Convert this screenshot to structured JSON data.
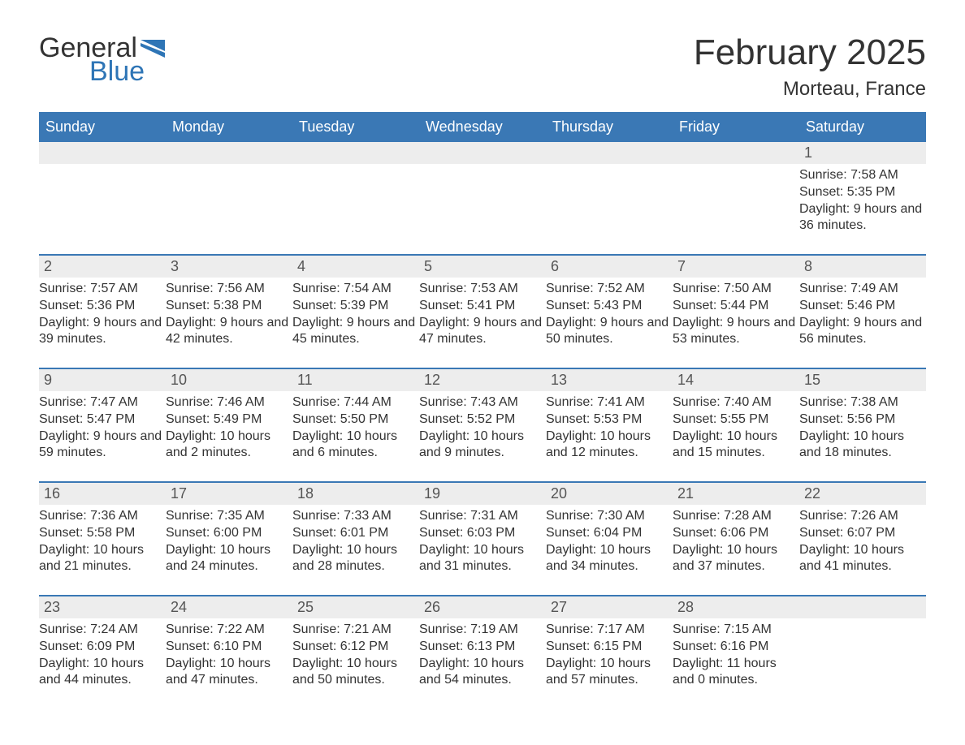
{
  "brand": {
    "text_general": "General",
    "text_blue": "Blue",
    "flag_color": "#2e75b6"
  },
  "title": "February 2025",
  "location": "Morteau, France",
  "colors": {
    "header_bg": "#3a78b5",
    "header_text": "#ffffff",
    "daynum_bg": "#ededed",
    "border": "#3a78b5",
    "body_text": "#333333"
  },
  "weekdays": [
    "Sunday",
    "Monday",
    "Tuesday",
    "Wednesday",
    "Thursday",
    "Friday",
    "Saturday"
  ],
  "weeks": [
    [
      {
        "day": "",
        "sunrise": "",
        "sunset": "",
        "daylight": ""
      },
      {
        "day": "",
        "sunrise": "",
        "sunset": "",
        "daylight": ""
      },
      {
        "day": "",
        "sunrise": "",
        "sunset": "",
        "daylight": ""
      },
      {
        "day": "",
        "sunrise": "",
        "sunset": "",
        "daylight": ""
      },
      {
        "day": "",
        "sunrise": "",
        "sunset": "",
        "daylight": ""
      },
      {
        "day": "",
        "sunrise": "",
        "sunset": "",
        "daylight": ""
      },
      {
        "day": "1",
        "sunrise": "Sunrise: 7:58 AM",
        "sunset": "Sunset: 5:35 PM",
        "daylight": "Daylight: 9 hours and 36 minutes."
      }
    ],
    [
      {
        "day": "2",
        "sunrise": "Sunrise: 7:57 AM",
        "sunset": "Sunset: 5:36 PM",
        "daylight": "Daylight: 9 hours and 39 minutes."
      },
      {
        "day": "3",
        "sunrise": "Sunrise: 7:56 AM",
        "sunset": "Sunset: 5:38 PM",
        "daylight": "Daylight: 9 hours and 42 minutes."
      },
      {
        "day": "4",
        "sunrise": "Sunrise: 7:54 AM",
        "sunset": "Sunset: 5:39 PM",
        "daylight": "Daylight: 9 hours and 45 minutes."
      },
      {
        "day": "5",
        "sunrise": "Sunrise: 7:53 AM",
        "sunset": "Sunset: 5:41 PM",
        "daylight": "Daylight: 9 hours and 47 minutes."
      },
      {
        "day": "6",
        "sunrise": "Sunrise: 7:52 AM",
        "sunset": "Sunset: 5:43 PM",
        "daylight": "Daylight: 9 hours and 50 minutes."
      },
      {
        "day": "7",
        "sunrise": "Sunrise: 7:50 AM",
        "sunset": "Sunset: 5:44 PM",
        "daylight": "Daylight: 9 hours and 53 minutes."
      },
      {
        "day": "8",
        "sunrise": "Sunrise: 7:49 AM",
        "sunset": "Sunset: 5:46 PM",
        "daylight": "Daylight: 9 hours and 56 minutes."
      }
    ],
    [
      {
        "day": "9",
        "sunrise": "Sunrise: 7:47 AM",
        "sunset": "Sunset: 5:47 PM",
        "daylight": "Daylight: 9 hours and 59 minutes."
      },
      {
        "day": "10",
        "sunrise": "Sunrise: 7:46 AM",
        "sunset": "Sunset: 5:49 PM",
        "daylight": "Daylight: 10 hours and 2 minutes."
      },
      {
        "day": "11",
        "sunrise": "Sunrise: 7:44 AM",
        "sunset": "Sunset: 5:50 PM",
        "daylight": "Daylight: 10 hours and 6 minutes."
      },
      {
        "day": "12",
        "sunrise": "Sunrise: 7:43 AM",
        "sunset": "Sunset: 5:52 PM",
        "daylight": "Daylight: 10 hours and 9 minutes."
      },
      {
        "day": "13",
        "sunrise": "Sunrise: 7:41 AM",
        "sunset": "Sunset: 5:53 PM",
        "daylight": "Daylight: 10 hours and 12 minutes."
      },
      {
        "day": "14",
        "sunrise": "Sunrise: 7:40 AM",
        "sunset": "Sunset: 5:55 PM",
        "daylight": "Daylight: 10 hours and 15 minutes."
      },
      {
        "day": "15",
        "sunrise": "Sunrise: 7:38 AM",
        "sunset": "Sunset: 5:56 PM",
        "daylight": "Daylight: 10 hours and 18 minutes."
      }
    ],
    [
      {
        "day": "16",
        "sunrise": "Sunrise: 7:36 AM",
        "sunset": "Sunset: 5:58 PM",
        "daylight": "Daylight: 10 hours and 21 minutes."
      },
      {
        "day": "17",
        "sunrise": "Sunrise: 7:35 AM",
        "sunset": "Sunset: 6:00 PM",
        "daylight": "Daylight: 10 hours and 24 minutes."
      },
      {
        "day": "18",
        "sunrise": "Sunrise: 7:33 AM",
        "sunset": "Sunset: 6:01 PM",
        "daylight": "Daylight: 10 hours and 28 minutes."
      },
      {
        "day": "19",
        "sunrise": "Sunrise: 7:31 AM",
        "sunset": "Sunset: 6:03 PM",
        "daylight": "Daylight: 10 hours and 31 minutes."
      },
      {
        "day": "20",
        "sunrise": "Sunrise: 7:30 AM",
        "sunset": "Sunset: 6:04 PM",
        "daylight": "Daylight: 10 hours and 34 minutes."
      },
      {
        "day": "21",
        "sunrise": "Sunrise: 7:28 AM",
        "sunset": "Sunset: 6:06 PM",
        "daylight": "Daylight: 10 hours and 37 minutes."
      },
      {
        "day": "22",
        "sunrise": "Sunrise: 7:26 AM",
        "sunset": "Sunset: 6:07 PM",
        "daylight": "Daylight: 10 hours and 41 minutes."
      }
    ],
    [
      {
        "day": "23",
        "sunrise": "Sunrise: 7:24 AM",
        "sunset": "Sunset: 6:09 PM",
        "daylight": "Daylight: 10 hours and 44 minutes."
      },
      {
        "day": "24",
        "sunrise": "Sunrise: 7:22 AM",
        "sunset": "Sunset: 6:10 PM",
        "daylight": "Daylight: 10 hours and 47 minutes."
      },
      {
        "day": "25",
        "sunrise": "Sunrise: 7:21 AM",
        "sunset": "Sunset: 6:12 PM",
        "daylight": "Daylight: 10 hours and 50 minutes."
      },
      {
        "day": "26",
        "sunrise": "Sunrise: 7:19 AM",
        "sunset": "Sunset: 6:13 PM",
        "daylight": "Daylight: 10 hours and 54 minutes."
      },
      {
        "day": "27",
        "sunrise": "Sunrise: 7:17 AM",
        "sunset": "Sunset: 6:15 PM",
        "daylight": "Daylight: 10 hours and 57 minutes."
      },
      {
        "day": "28",
        "sunrise": "Sunrise: 7:15 AM",
        "sunset": "Sunset: 6:16 PM",
        "daylight": "Daylight: 11 hours and 0 minutes."
      },
      {
        "day": "",
        "sunrise": "",
        "sunset": "",
        "daylight": ""
      }
    ]
  ]
}
